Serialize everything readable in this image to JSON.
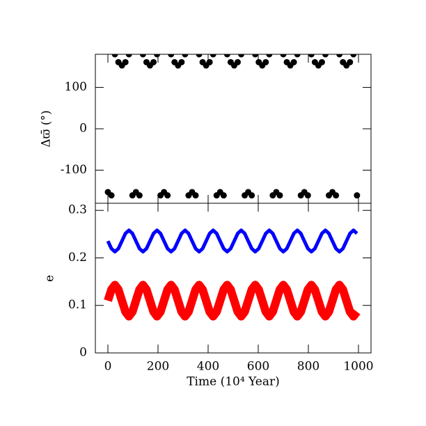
{
  "chart_data": [
    {
      "type": "scatter",
      "ylabel": "Δϖ̄ (°)",
      "x": [
        0,
        14,
        28,
        42,
        56,
        70,
        84,
        98,
        112,
        126,
        140,
        154,
        168,
        182,
        196,
        210,
        224,
        238,
        252,
        266,
        280,
        294,
        308,
        322,
        336,
        350,
        364,
        378,
        392,
        406,
        420,
        434,
        448,
        462,
        476,
        490,
        504,
        518,
        532,
        546,
        560,
        574,
        588,
        602,
        616,
        630,
        644,
        658,
        672,
        686,
        700,
        714,
        728,
        742,
        756,
        770,
        784,
        798,
        812,
        826,
        840,
        854,
        868,
        882,
        896,
        910,
        924,
        938,
        952,
        966,
        980,
        994
      ],
      "values": [
        -153,
        -160.9,
        180,
        160.9,
        153,
        160.9,
        180,
        -160.9,
        -153,
        -160.9,
        180,
        160.9,
        153,
        160.9,
        180,
        -160.9,
        -153,
        -160.9,
        180,
        160.9,
        153,
        160.9,
        180,
        -160.9,
        -153,
        -160.9,
        180,
        160.9,
        153,
        160.9,
        180,
        -160.9,
        -153,
        -160.9,
        180,
        160.9,
        153,
        160.9,
        180,
        -160.9,
        -153,
        -160.9,
        180,
        160.9,
        153,
        160.9,
        180,
        -160.9,
        -153,
        -160.9,
        180,
        160.9,
        153,
        160.9,
        180,
        -160.9,
        -153,
        -160.9,
        180,
        160.9,
        153,
        160.9,
        180,
        -160.9,
        -153,
        -160.9,
        180,
        160.9,
        153,
        160.9,
        180,
        -160.9
      ],
      "color": "#000000",
      "xlim": [
        -50,
        1050
      ],
      "xticks": [
        0,
        200,
        400,
        600,
        800,
        1000
      ],
      "ylim": [
        -180,
        180
      ],
      "yticks": [
        -100,
        0,
        100
      ]
    },
    {
      "type": "line",
      "ylabel": "e",
      "xlabel": "Time (10⁴ Year)",
      "x": [
        0,
        14,
        28,
        42,
        56,
        70,
        84,
        98,
        112,
        126,
        140,
        154,
        168,
        182,
        196,
        210,
        224,
        238,
        252,
        266,
        280,
        294,
        308,
        322,
        336,
        350,
        364,
        378,
        392,
        406,
        420,
        434,
        448,
        462,
        476,
        490,
        504,
        518,
        532,
        546,
        560,
        574,
        588,
        602,
        616,
        630,
        644,
        658,
        672,
        686,
        700,
        714,
        728,
        742,
        756,
        770,
        784,
        798,
        812,
        826,
        840,
        854,
        868,
        882,
        896,
        910,
        924,
        938,
        952,
        966,
        980,
        994
      ],
      "series": [
        {
          "color": "#0000ff",
          "values": [
            0.2355,
            0.2196,
            0.213,
            0.2196,
            0.2355,
            0.2514,
            0.258,
            0.2514,
            0.2355,
            0.2196,
            0.213,
            0.2196,
            0.2355,
            0.2514,
            0.258,
            0.2514,
            0.2355,
            0.2196,
            0.213,
            0.2196,
            0.2355,
            0.2514,
            0.258,
            0.2514,
            0.2355,
            0.2196,
            0.213,
            0.2196,
            0.2355,
            0.2514,
            0.258,
            0.2514,
            0.2355,
            0.2196,
            0.213,
            0.2196,
            0.2355,
            0.2514,
            0.258,
            0.2514,
            0.2355,
            0.2196,
            0.213,
            0.2196,
            0.2355,
            0.2514,
            0.258,
            0.2514,
            0.2355,
            0.2196,
            0.213,
            0.2196,
            0.2355,
            0.2514,
            0.258,
            0.2514,
            0.2355,
            0.2196,
            0.213,
            0.2196,
            0.2355,
            0.2514,
            0.258,
            0.2514,
            0.2355,
            0.2196,
            0.213,
            0.2196,
            0.2355,
            0.2514,
            0.258,
            0.2514
          ]
        },
        {
          "color": "#ff0000",
          "values": [
            0.11,
            0.1333,
            0.143,
            0.1333,
            0.11,
            0.0867,
            0.077,
            0.0867,
            0.11,
            0.1333,
            0.143,
            0.1333,
            0.11,
            0.0867,
            0.077,
            0.0867,
            0.11,
            0.1333,
            0.143,
            0.1333,
            0.11,
            0.0867,
            0.077,
            0.0867,
            0.11,
            0.1333,
            0.143,
            0.1333,
            0.11,
            0.0867,
            0.077,
            0.0867,
            0.11,
            0.1333,
            0.143,
            0.1333,
            0.11,
            0.0867,
            0.077,
            0.0867,
            0.11,
            0.1333,
            0.143,
            0.1333,
            0.11,
            0.0867,
            0.077,
            0.0867,
            0.11,
            0.1333,
            0.143,
            0.1333,
            0.11,
            0.0867,
            0.077,
            0.0867,
            0.11,
            0.1333,
            0.143,
            0.1333,
            0.11,
            0.0867,
            0.077,
            0.0867,
            0.11,
            0.1333,
            0.143,
            0.1333,
            0.11,
            0.0867,
            0.077,
            0.0867
          ]
        }
      ],
      "xlim": [
        -50,
        1050
      ],
      "xticks": [
        0,
        200,
        400,
        600,
        800,
        1000
      ],
      "ylim": [
        0,
        0.315
      ],
      "yticks": [
        0,
        0.1,
        0.2,
        0.3
      ]
    }
  ]
}
